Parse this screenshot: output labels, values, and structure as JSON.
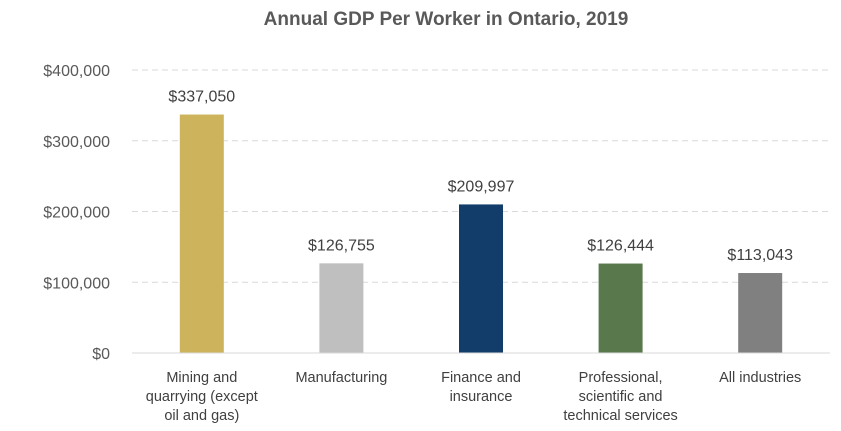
{
  "chart_data": {
    "type": "bar",
    "title": "Annual GDP Per Worker in Ontario, 2019",
    "categories": [
      "Mining and quarrying (except oil and gas)",
      "Manufacturing",
      "Finance and insurance",
      "Professional, scientific and technical services",
      "All industries"
    ],
    "category_lines": [
      [
        "Mining and",
        "quarrying (except",
        "oil and gas)"
      ],
      [
        "Manufacturing"
      ],
      [
        "Finance and",
        "insurance"
      ],
      [
        "Professional,",
        "scientific and",
        "technical services"
      ],
      [
        "All industries"
      ]
    ],
    "values": [
      337050,
      126755,
      209997,
      126444,
      113043
    ],
    "data_labels": [
      "$337,050",
      "$126,755",
      "$209,997",
      "$126,444",
      "$113,043"
    ],
    "bar_colors": [
      "#CDB35B",
      "#BFBFBF",
      "#123D6A",
      "#59784C",
      "#808080"
    ],
    "ylim": [
      0,
      400000
    ],
    "yticks": [
      0,
      100000,
      200000,
      300000,
      400000
    ],
    "ytick_labels": [
      "$0",
      "$100,000",
      "$200,000",
      "$300,000",
      "$400,000"
    ],
    "grid": true,
    "legend": false
  }
}
